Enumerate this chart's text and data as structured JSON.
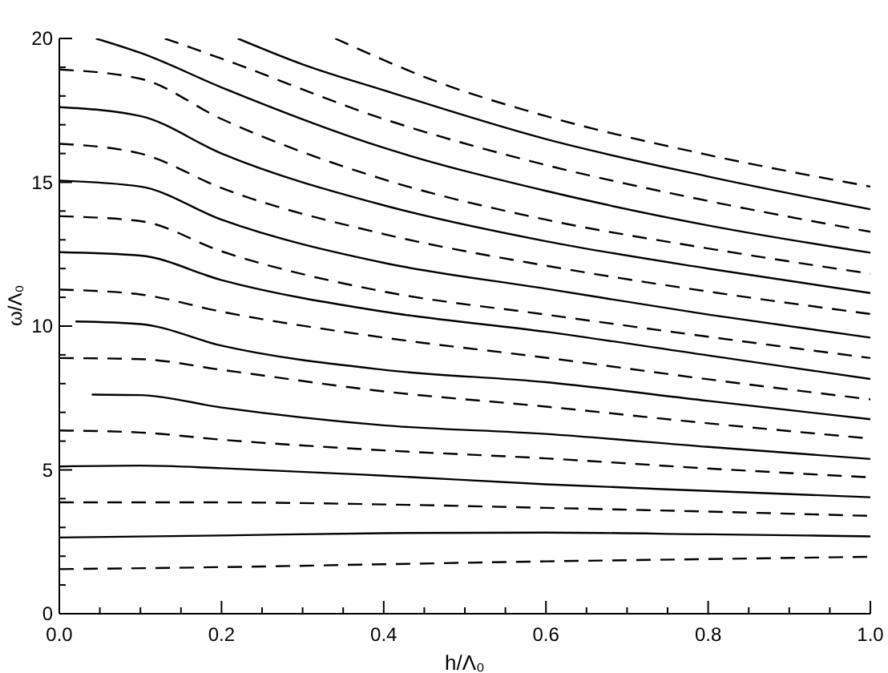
{
  "chart_data": {
    "type": "line",
    "xlabel": "h/Λ₀",
    "ylabel": "ω/Λ₀",
    "xlim": [
      0,
      1
    ],
    "ylim": [
      0,
      20
    ],
    "xticks": [
      {
        "value": 0,
        "label": "0.0"
      },
      {
        "value": 0.05,
        "label": null
      },
      {
        "value": 0.1,
        "label": null
      },
      {
        "value": 0.15,
        "label": null
      },
      {
        "value": 0.2,
        "label": "0.2"
      },
      {
        "value": 0.25,
        "label": null
      },
      {
        "value": 0.3,
        "label": null
      },
      {
        "value": 0.35,
        "label": null
      },
      {
        "value": 0.4,
        "label": "0.4"
      },
      {
        "value": 0.45,
        "label": null
      },
      {
        "value": 0.5,
        "label": null
      },
      {
        "value": 0.55,
        "label": null
      },
      {
        "value": 0.6,
        "label": "0.6"
      },
      {
        "value": 0.65,
        "label": null
      },
      {
        "value": 0.7,
        "label": null
      },
      {
        "value": 0.75,
        "label": null
      },
      {
        "value": 0.8,
        "label": "0.8"
      },
      {
        "value": 0.85,
        "label": null
      },
      {
        "value": 0.9,
        "label": null
      },
      {
        "value": 0.95,
        "label": null
      },
      {
        "value": 1,
        "label": "1.0"
      }
    ],
    "yticks": [
      0,
      {
        "value": 1,
        "label": null
      },
      {
        "value": 2,
        "label": null
      },
      {
        "value": 3,
        "label": null
      },
      {
        "value": 4,
        "label": null
      },
      5,
      {
        "value": 6,
        "label": null
      },
      {
        "value": 7,
        "label": null
      },
      {
        "value": 8,
        "label": null
      },
      {
        "value": 9,
        "label": null
      },
      10,
      {
        "value": 11,
        "label": null
      },
      {
        "value": 12,
        "label": null
      },
      {
        "value": 13,
        "label": null
      },
      {
        "value": 14,
        "label": null
      },
      15,
      {
        "value": 16,
        "label": null
      },
      {
        "value": 17,
        "label": null
      },
      {
        "value": 18,
        "label": null
      },
      {
        "value": 19,
        "label": null
      },
      20
    ],
    "series": [
      {
        "color": "#000000",
        "line_style": "dashed",
        "x": [
          0,
          0.2,
          0.4,
          0.6,
          0.8,
          1
        ],
        "values": [
          1.55,
          1.62,
          1.72,
          1.82,
          1.9,
          1.98
        ]
      },
      {
        "color": "#000000",
        "line_style": "solid",
        "x": [
          0,
          0.2,
          0.4,
          0.6,
          0.8,
          1
        ],
        "values": [
          2.65,
          2.72,
          2.8,
          2.82,
          2.76,
          2.69
        ]
      },
      {
        "color": "#000000",
        "line_style": "dashed",
        "x": [
          0,
          0.2,
          0.4,
          0.6,
          0.8,
          1
        ],
        "values": [
          3.87,
          3.87,
          3.8,
          3.68,
          3.55,
          3.4
        ]
      },
      {
        "color": "#000000",
        "line_style": "solid",
        "x": [
          0,
          0.1,
          0.2,
          0.4,
          0.6,
          0.8,
          1
        ],
        "values": [
          5.12,
          5.15,
          5.06,
          4.8,
          4.5,
          4.27,
          4.05
        ]
      },
      {
        "color": "#000000",
        "line_style": "dashed",
        "x": [
          0,
          0.1,
          0.2,
          0.4,
          0.6,
          0.8,
          1
        ],
        "values": [
          6.37,
          6.3,
          6.05,
          5.68,
          5.4,
          5.05,
          4.74
        ]
      },
      {
        "color": "#000000",
        "line_style": "solid",
        "x": [
          0.04,
          0.1,
          0.2,
          0.4,
          0.6,
          0.8,
          1
        ],
        "values": [
          7.62,
          7.6,
          7.17,
          6.55,
          6.25,
          5.8,
          5.38
        ]
      },
      {
        "color": "#000000",
        "line_style": "dashed",
        "x": [
          0,
          0.1,
          0.2,
          0.4,
          0.6,
          0.8,
          1
        ],
        "values": [
          8.89,
          8.85,
          8.48,
          7.73,
          7.2,
          6.62,
          6.09
        ]
      },
      {
        "color": "#000000",
        "line_style": "solid",
        "x": [
          0.02,
          0.1,
          0.2,
          0.4,
          0.6,
          0.8,
          1
        ],
        "values": [
          10.16,
          10.07,
          9.32,
          8.48,
          8.05,
          7.4,
          6.76
        ]
      },
      {
        "color": "#000000",
        "line_style": "dashed",
        "x": [
          0,
          0.1,
          0.2,
          0.4,
          0.6,
          0.8,
          1
        ],
        "values": [
          11.27,
          11.1,
          10.5,
          9.6,
          8.9,
          8.15,
          7.45
        ]
      },
      {
        "color": "#000000",
        "line_style": "solid",
        "x": [
          0,
          0.1,
          0.2,
          0.4,
          0.6,
          0.8,
          1
        ],
        "values": [
          12.57,
          12.45,
          11.6,
          10.5,
          9.8,
          8.98,
          8.16
        ]
      },
      {
        "color": "#000000",
        "line_style": "dashed",
        "x": [
          0,
          0.1,
          0.2,
          0.4,
          0.6,
          0.8,
          1
        ],
        "values": [
          13.82,
          13.65,
          12.6,
          11.2,
          10.4,
          9.63,
          8.89
        ]
      },
      {
        "color": "#000000",
        "line_style": "solid",
        "x": [
          0,
          0.1,
          0.2,
          0.4,
          0.6,
          0.8,
          1
        ],
        "values": [
          15.06,
          14.85,
          13.7,
          12.2,
          11.3,
          10.4,
          9.6
        ]
      },
      {
        "color": "#000000",
        "line_style": "dashed",
        "x": [
          0,
          0.1,
          0.2,
          0.4,
          0.6,
          0.8,
          1
        ],
        "values": [
          16.34,
          16.0,
          14.8,
          13.2,
          12.1,
          11.2,
          10.42
        ]
      },
      {
        "color": "#000000",
        "line_style": "solid",
        "x": [
          0,
          0.1,
          0.2,
          0.4,
          0.6,
          0.8,
          1
        ],
        "values": [
          17.61,
          17.3,
          16.0,
          14.2,
          12.95,
          12.0,
          11.15
        ]
      },
      {
        "color": "#000000",
        "line_style": "dashed",
        "x": [
          0,
          0.1,
          0.2,
          0.4,
          0.6,
          0.8,
          1
        ],
        "values": [
          18.92,
          18.6,
          17.2,
          15.1,
          13.7,
          12.7,
          11.82
        ]
      },
      {
        "color": "#000000",
        "line_style": "solid",
        "x": [
          0.045,
          0.1,
          0.2,
          0.4,
          0.6,
          0.8,
          1
        ],
        "values": [
          20,
          19.5,
          18.3,
          16.2,
          14.7,
          13.5,
          12.55
        ]
      },
      {
        "color": "#000000",
        "line_style": "dashed",
        "x": [
          0.13,
          0.2,
          0.4,
          0.6,
          0.8,
          1
        ],
        "values": [
          20,
          19.3,
          17.2,
          15.6,
          14.35,
          13.28
        ]
      },
      {
        "color": "#000000",
        "line_style": "solid",
        "x": [
          0.22,
          0.3,
          0.4,
          0.6,
          0.8,
          1
        ],
        "values": [
          20,
          19.1,
          18.2,
          16.5,
          15.2,
          14.06
        ]
      },
      {
        "color": "#000000",
        "line_style": "dashed",
        "x": [
          0.34,
          0.47,
          0.6,
          0.8,
          1
        ],
        "values": [
          20,
          18.45,
          17.3,
          15.95,
          14.85
        ]
      }
    ]
  }
}
